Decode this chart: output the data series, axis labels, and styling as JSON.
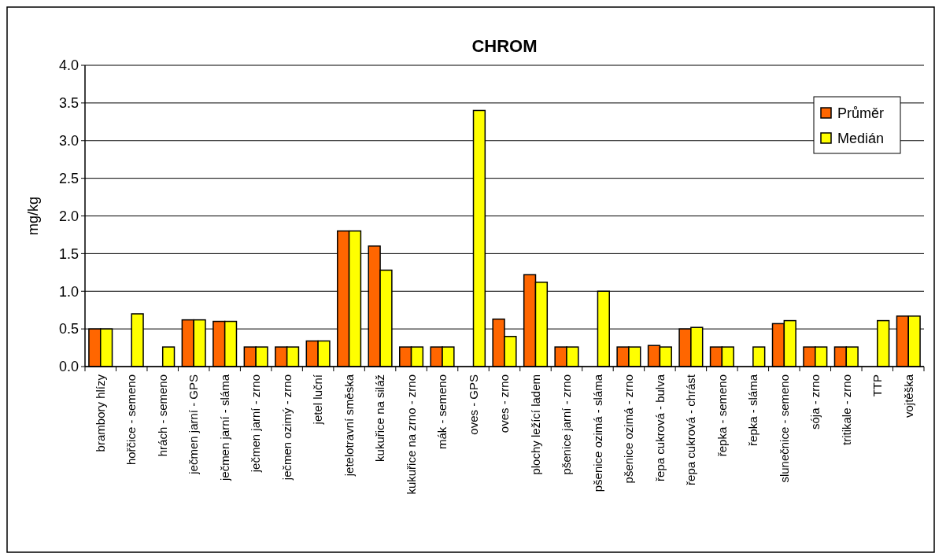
{
  "chart_data": {
    "type": "bar",
    "title": "CHROM",
    "ylabel": "mg/kg",
    "categories": [
      "brambory hlízy",
      "hořčice - semeno",
      "hrách - semeno",
      "ječmen jarní - GPS",
      "ječmen jarní - sláma",
      "ječmen jarní - zrno",
      "ječmen ozimý - zrno",
      "jetel luční",
      "jetelotravní směska",
      "kukuřice na siláž",
      "kukuřice na zrno - zrno",
      "mák - semeno",
      "oves - GPS",
      "oves - zrno",
      "plochy ležící ladem",
      "pšenice jarní - zrno",
      "pšenice ozimá - sláma",
      "pšenice ozimá - zrno",
      "řepa cukrová - bulva",
      "řepa cukrová - chrást",
      "řepka - semeno",
      "řepka - sláma",
      "slunečnice - semeno",
      "sója - zrno",
      "tritikale - zrno",
      "TTP",
      "vojtěška"
    ],
    "series": [
      {
        "name": "Průměr",
        "color": "#ff6600",
        "values": [
          0.5,
          null,
          null,
          0.62,
          0.6,
          0.26,
          0.26,
          0.34,
          1.8,
          1.6,
          0.26,
          0.26,
          null,
          0.63,
          1.22,
          0.26,
          null,
          0.26,
          0.28,
          0.5,
          0.26,
          null,
          0.57,
          0.26,
          0.26,
          null,
          0.67
        ]
      },
      {
        "name": "Medián",
        "color": "#ffff00",
        "values": [
          0.5,
          0.7,
          0.26,
          0.62,
          0.6,
          0.26,
          0.26,
          0.34,
          1.8,
          1.28,
          0.26,
          0.26,
          3.4,
          0.4,
          1.12,
          0.26,
          1.0,
          0.26,
          0.26,
          0.52,
          0.26,
          0.26,
          0.61,
          0.26,
          0.26,
          0.61,
          0.67
        ]
      }
    ],
    "ylim": [
      0,
      4
    ],
    "yticks": [
      {
        "value": 0,
        "label": "0.0"
      },
      {
        "value": 0.5,
        "label": "0.5"
      },
      {
        "value": 1,
        "label": "1.0"
      },
      {
        "value": 1.5,
        "label": "1.5"
      },
      {
        "value": 2,
        "label": "2.0"
      },
      {
        "value": 2.5,
        "label": "2.5"
      },
      {
        "value": 3,
        "label": "3.0"
      },
      {
        "value": 3.5,
        "label": "3.5"
      },
      {
        "value": 4,
        "label": "4.0"
      }
    ],
    "grid": "y",
    "legend": "top right"
  }
}
